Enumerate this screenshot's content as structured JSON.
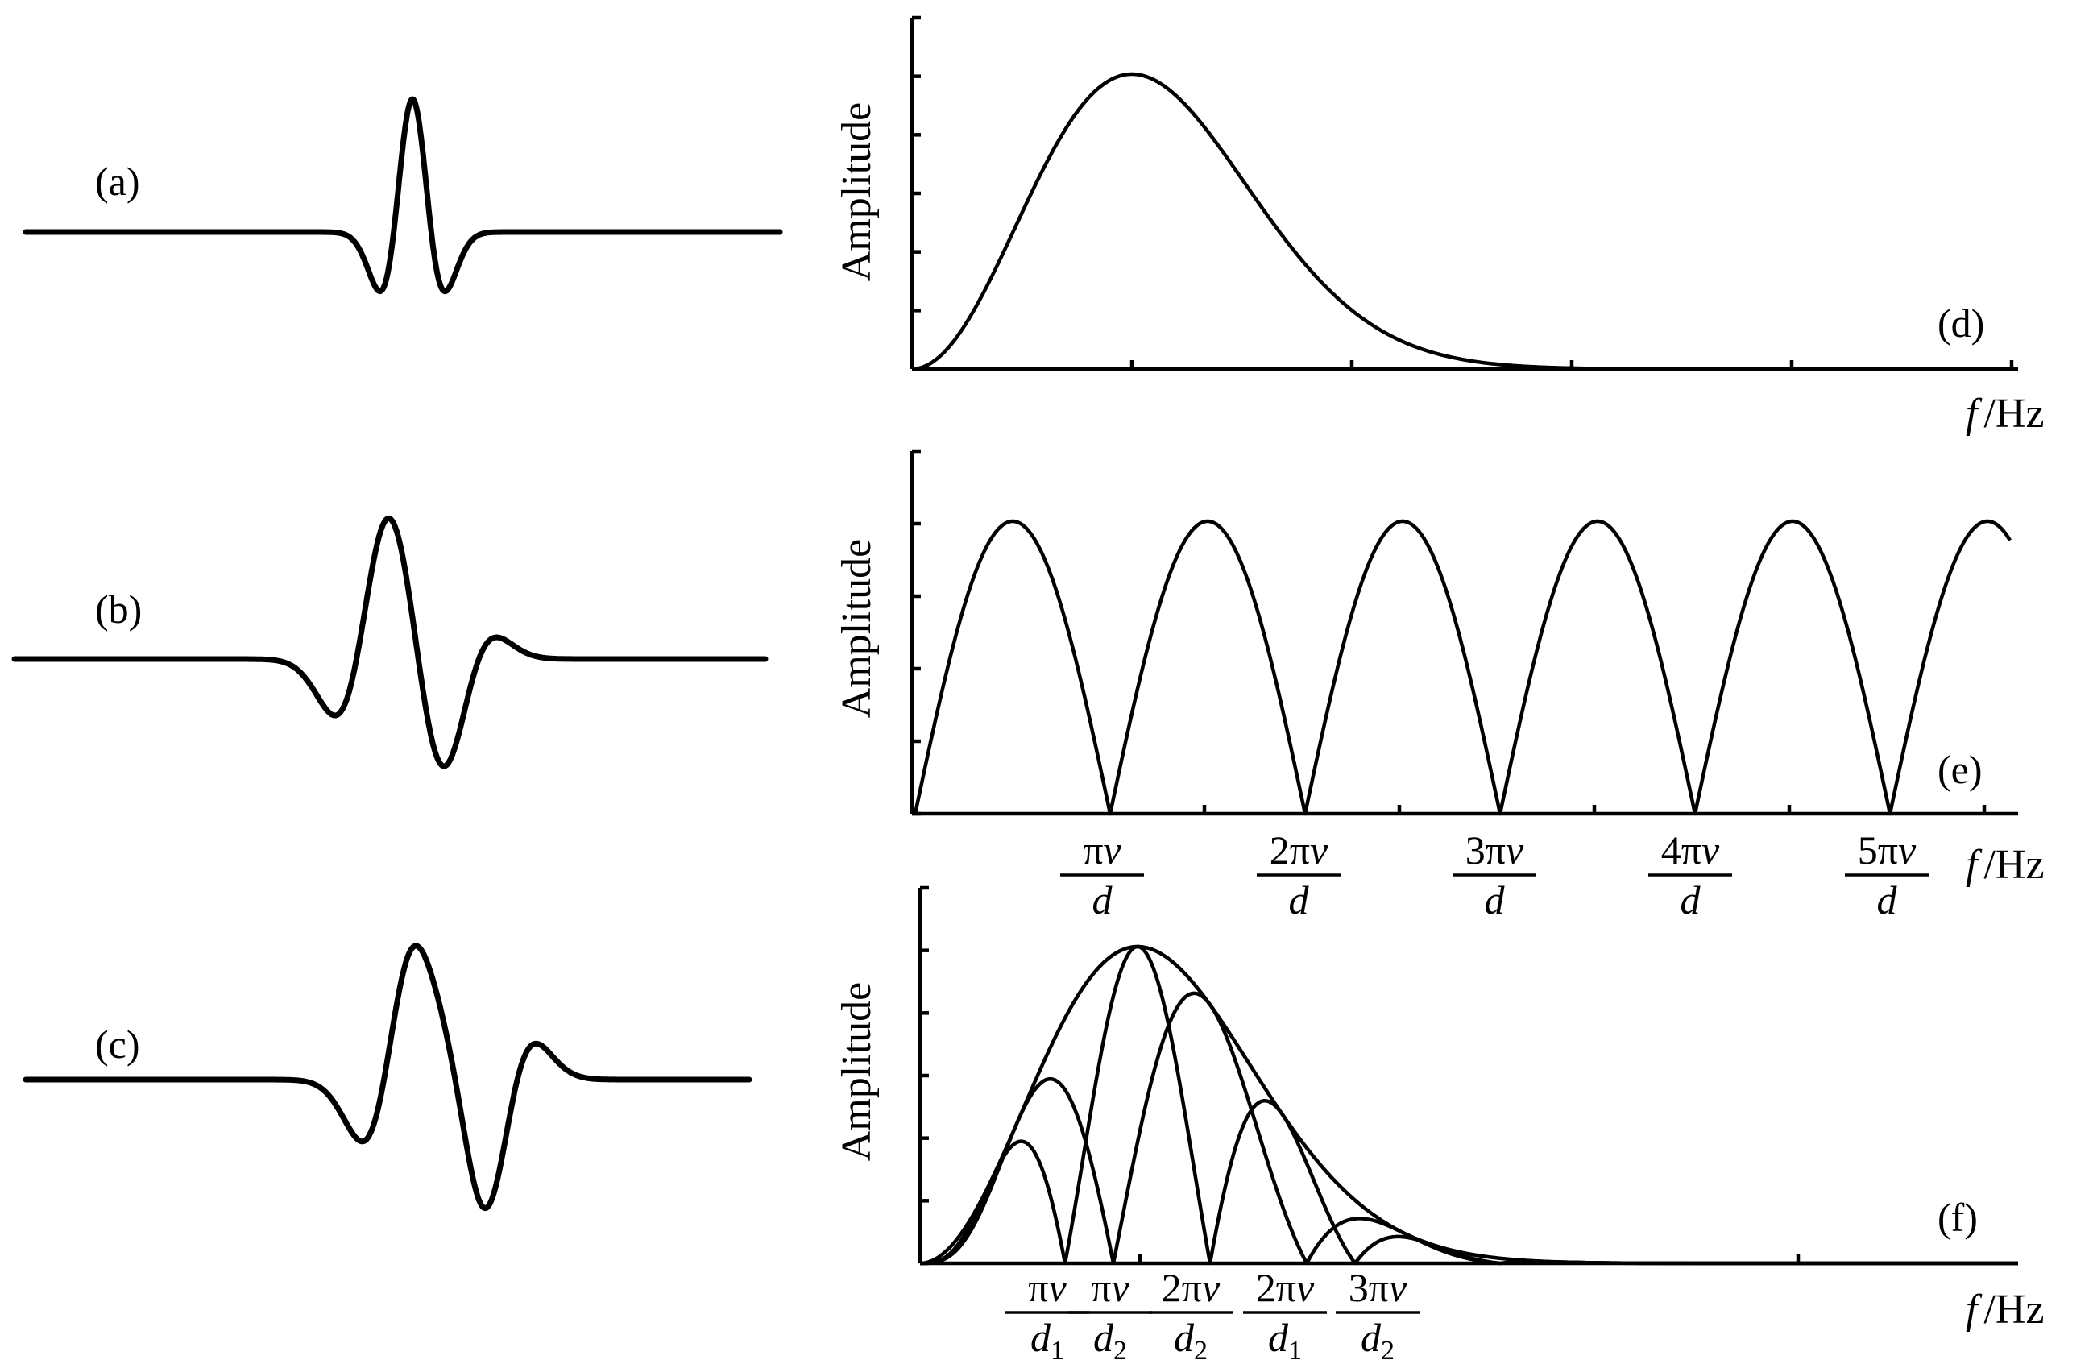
{
  "figure": {
    "panels": [
      {
        "id": "a",
        "label": "(a)",
        "kind": "waveform",
        "pulses": [
          {
            "amp": 1.0,
            "shift": 0
          }
        ]
      },
      {
        "id": "b",
        "label": "(b)",
        "kind": "waveform",
        "pulses": [
          {
            "amp": 1.0,
            "shift": -0.75
          },
          {
            "amp": 0.4,
            "shift": 0.0
          },
          {
            "amp": -0.55,
            "shift": 0.75
          }
        ]
      },
      {
        "id": "c",
        "label": "(c)",
        "kind": "waveform",
        "pulses": [
          {
            "amp": 1.0,
            "shift": -0.85
          },
          {
            "amp": 0.45,
            "shift": 0.25
          },
          {
            "amp": -0.75,
            "shift": 0.95
          }
        ]
      },
      {
        "id": "d",
        "label": "(d)",
        "kind": "spectrum",
        "ylabel": "Amplitude",
        "x_unit": "/Hz",
        "x_symbol": "f",
        "y_ticks": 6,
        "x_ticks": 5
      },
      {
        "id": "e",
        "label": "(e)",
        "kind": "spectrum",
        "ylabel": "Amplitude",
        "x_unit": "/Hz",
        "x_symbol": "f",
        "y_ticks": 5,
        "x_tick_labels": [
          {
            "num": "πv",
            "den": "d"
          },
          {
            "num": "2πv",
            "den": "d"
          },
          {
            "num": "3πv",
            "den": "d"
          },
          {
            "num": "4πv",
            "den": "d"
          },
          {
            "num": "5πv",
            "den": "d"
          }
        ]
      },
      {
        "id": "f",
        "label": "(f)",
        "kind": "spectrum",
        "ylabel": "Amplitude",
        "x_unit": "/Hz",
        "x_symbol": "f",
        "y_ticks": 6,
        "x_tick_labels": [
          {
            "num": "πv",
            "den": "d",
            "sub": "1"
          },
          {
            "num": "πv",
            "den": "d",
            "sub": "2"
          },
          {
            "num": "2πv",
            "den": "d",
            "sub": "2"
          },
          {
            "num": "2πv",
            "den": "d",
            "sub": "1"
          },
          {
            "num": "3πv",
            "den": "d",
            "sub": "2"
          }
        ]
      }
    ]
  }
}
